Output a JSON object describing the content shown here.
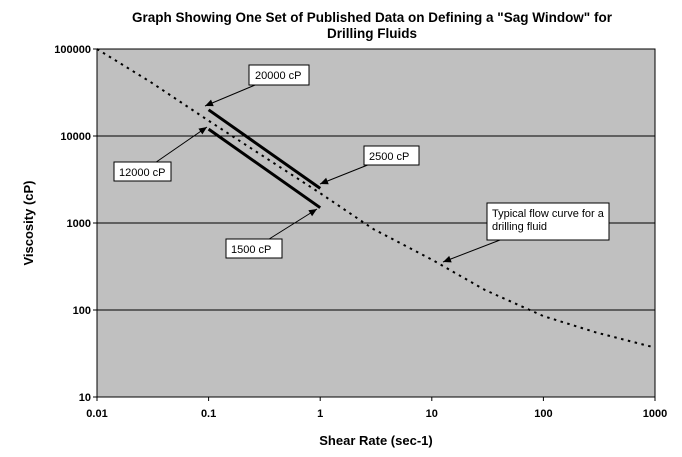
{
  "chart_data": {
    "type": "line",
    "title_lines": [
      "Graph Showing One Set of Published Data on Defining a \"Sag Window\" for",
      "Drilling Fluids"
    ],
    "xlabel": "Shear Rate (sec-1)",
    "ylabel": "Viscosity (cP)",
    "x_scale": "log",
    "y_scale": "log",
    "xlim": [
      0.01,
      1000
    ],
    "ylim": [
      10,
      100000
    ],
    "x_ticks": [
      "0.01",
      "0.1",
      "1",
      "10",
      "100",
      "1000"
    ],
    "y_ticks": [
      "10",
      "100",
      "1000",
      "10000",
      "100000"
    ],
    "grid": "horizontal major lines",
    "plot_background": "#c0c0c0",
    "series": [
      {
        "style": "dotted",
        "color": "#000000",
        "x": [
          0.01,
          0.03,
          0.1,
          0.3,
          1,
          3,
          10,
          30,
          100,
          300,
          1000
        ],
        "y": [
          100000,
          42000,
          15000,
          6000,
          2200,
          850,
          380,
          170,
          85,
          55,
          37
        ]
      },
      {
        "style": "solid-thick",
        "color": "#000000",
        "x": [
          0.1,
          1
        ],
        "y": [
          20000,
          2500
        ]
      },
      {
        "style": "solid-thick",
        "color": "#000000",
        "x": [
          0.1,
          1
        ],
        "y": [
          12000,
          1500
        ]
      }
    ],
    "annotations": [
      {
        "text": "20000 cP",
        "point": [
          0.1,
          20000
        ]
      },
      {
        "text": "12000 cP",
        "point": [
          0.1,
          12000
        ]
      },
      {
        "text": "2500 cP",
        "point": [
          1,
          2500
        ]
      },
      {
        "text": "1500 cP",
        "point": [
          1,
          1500
        ]
      },
      {
        "text_lines": [
          "Typical flow curve for a",
          "drilling fluid"
        ],
        "point": [
          12,
          340
        ]
      }
    ]
  }
}
